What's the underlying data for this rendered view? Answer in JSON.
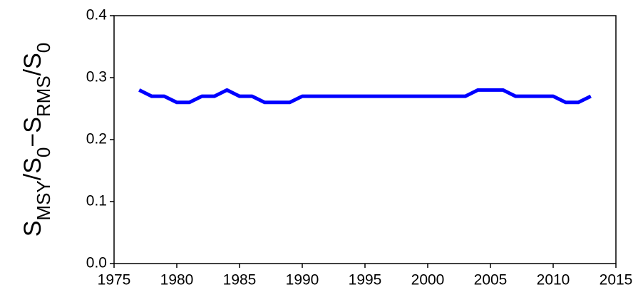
{
  "chart_data": {
    "type": "line",
    "y_label": [
      {
        "text": "S",
        "sub": false
      },
      {
        "text": "MSY",
        "sub": true
      },
      {
        "text": "/S",
        "sub": false
      },
      {
        "text": "0",
        "sub": true
      },
      {
        "text": "−S",
        "sub": false
      },
      {
        "text": "RMS",
        "sub": true
      },
      {
        "text": "/S",
        "sub": false
      },
      {
        "text": "0",
        "sub": true
      }
    ],
    "x": [
      1977,
      1978,
      1979,
      1980,
      1981,
      1982,
      1983,
      1984,
      1985,
      1986,
      1987,
      1988,
      1989,
      1990,
      1991,
      1992,
      1993,
      1994,
      1995,
      1996,
      1997,
      1998,
      1999,
      2000,
      2001,
      2002,
      2003,
      2004,
      2005,
      2006,
      2007,
      2008,
      2009,
      2010,
      2011,
      2012,
      2013
    ],
    "series": [
      {
        "color": "#0000ff",
        "values": [
          0.28,
          0.27,
          0.27,
          0.26,
          0.26,
          0.27,
          0.27,
          0.28,
          0.27,
          0.27,
          0.26,
          0.26,
          0.26,
          0.27,
          0.27,
          0.27,
          0.27,
          0.27,
          0.27,
          0.27,
          0.27,
          0.27,
          0.27,
          0.27,
          0.27,
          0.27,
          0.27,
          0.28,
          0.28,
          0.28,
          0.27,
          0.27,
          0.27,
          0.27,
          0.26,
          0.26,
          0.27
        ]
      }
    ],
    "xlim": [
      1975,
      2015
    ],
    "xticks": [
      1975,
      1980,
      1985,
      1990,
      1995,
      2000,
      2005,
      2010,
      2015
    ],
    "ylim": [
      0,
      0.4
    ],
    "yticks": [
      {
        "value": 0,
        "label": "0.0"
      },
      0.1,
      0.2,
      0.3,
      0.4
    ]
  }
}
